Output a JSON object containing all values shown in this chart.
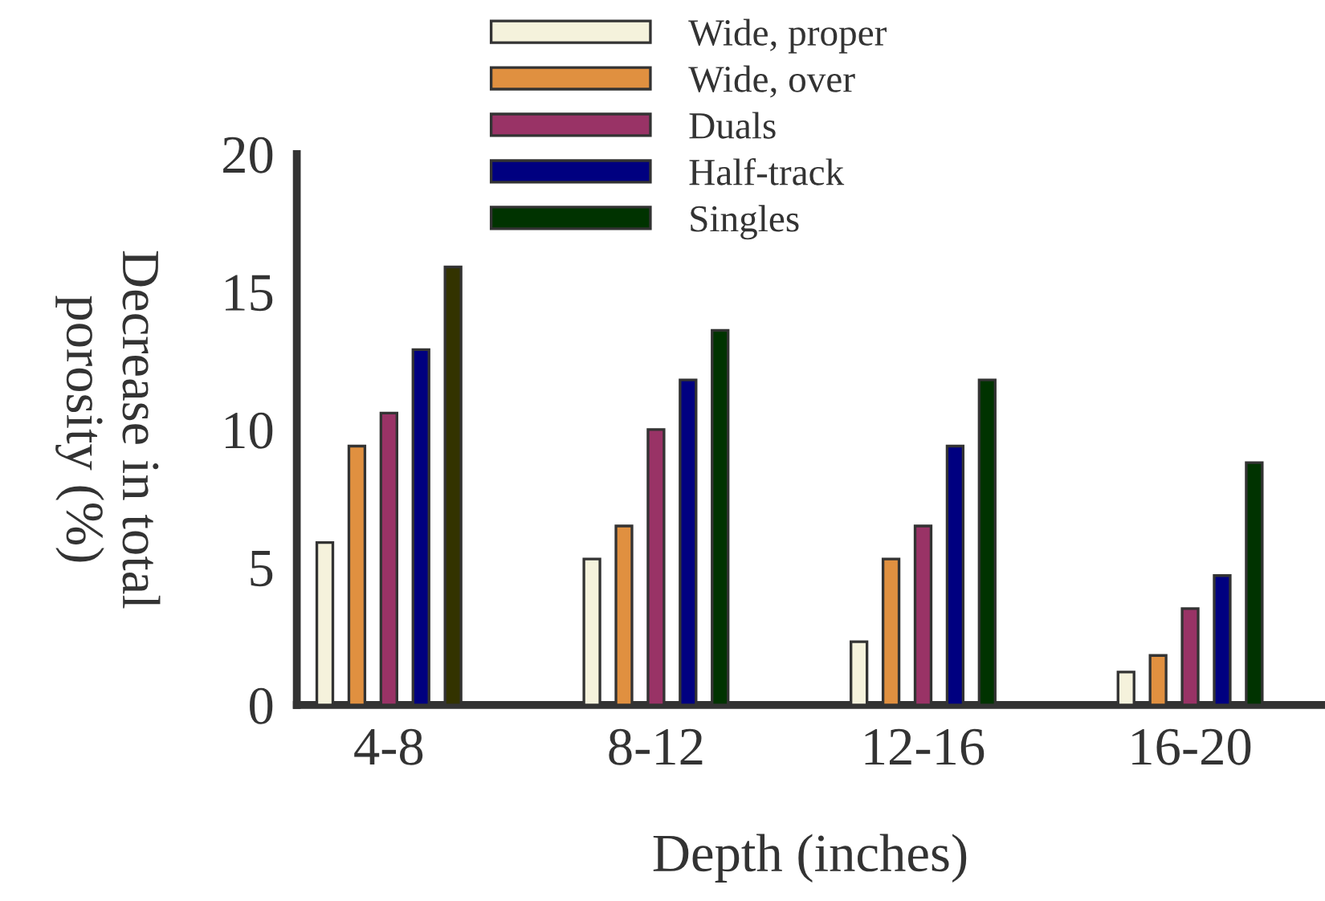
{
  "chart_data": {
    "type": "bar",
    "xlabel": "Depth (inches)",
    "ylabel": "Decrease in total\nporosity (%)",
    "categories": [
      "4-8",
      "8-12",
      "12-16",
      "16-20"
    ],
    "series": [
      {
        "name": "Wide, proper",
        "color": "#f5f2dc",
        "values": [
          5.9,
          5.3,
          2.3,
          1.2
        ]
      },
      {
        "name": "Wide, over",
        "color": "#e09040",
        "values": [
          9.4,
          6.5,
          5.3,
          1.8
        ]
      },
      {
        "name": "Duals",
        "color": "#993366",
        "values": [
          10.6,
          10.0,
          6.5,
          3.5
        ]
      },
      {
        "name": "Half-track",
        "color": "#000080",
        "values": [
          12.9,
          11.8,
          9.4,
          4.7
        ]
      },
      {
        "name": "Singles",
        "color": "#003300",
        "colors": [
          "#333300",
          "#003300",
          "#003300",
          "#003300"
        ],
        "values": [
          15.9,
          13.6,
          11.8,
          8.8
        ]
      }
    ],
    "ylim": [
      0,
      20
    ],
    "yticks": [
      0,
      5,
      10,
      15,
      20
    ],
    "grid": false,
    "legend": "top"
  }
}
